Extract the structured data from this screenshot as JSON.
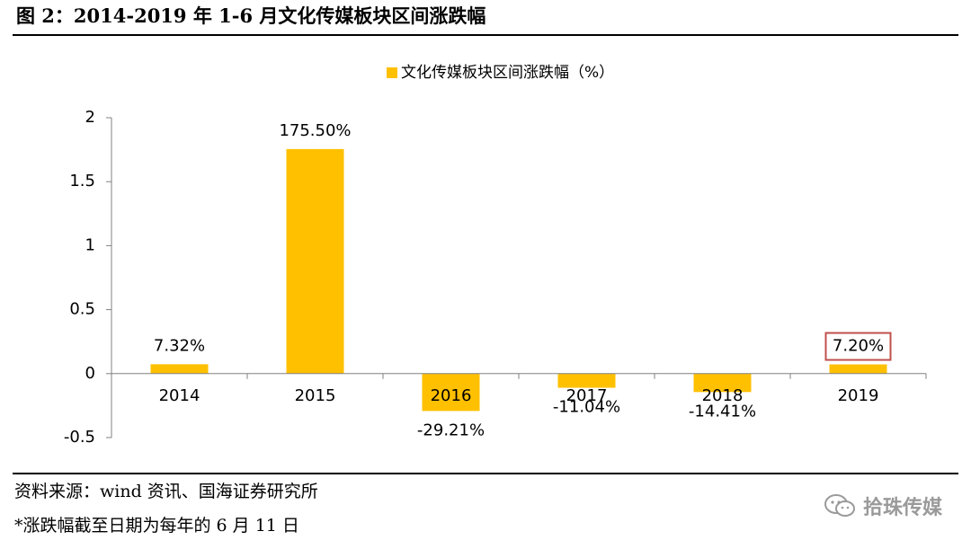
{
  "figure": {
    "title": "图 2：2014-2019 年 1-6 月文化传媒板块区间涨跌幅",
    "source": "资料来源：wind 资讯、国海证券研究所",
    "note": "*涨跌幅截至日期为每年的 6 月 11 日",
    "watermark": "拾珠传媒",
    "watermark_icon": "wechat-icon"
  },
  "chart_data": {
    "type": "bar",
    "categories": [
      "2014",
      "2015",
      "2016",
      "2017",
      "2018",
      "2019"
    ],
    "series": [
      {
        "name": "文化传媒板块区间涨跌幅（%）",
        "values": [
          0.0732,
          1.755,
          -0.2921,
          -0.1104,
          -0.1441,
          0.072
        ],
        "labels": [
          "7.32%",
          "175.50%",
          "-29.21%",
          "-11.04%",
          "-14.41%",
          "7.20%"
        ]
      }
    ],
    "ylim": [
      -0.5,
      2
    ],
    "yticks": [
      -0.5,
      0,
      0.5,
      1,
      1.5,
      2
    ],
    "ytick_labels": [
      "-0.5",
      "0",
      "0.5",
      "1",
      "1.5",
      "2"
    ],
    "highlighted_label": "7.20%",
    "legend_position": "top-center",
    "grid": false,
    "colors": {
      "bar": "#FFC000",
      "highlight_box": "#C0504D",
      "axis": "#808080"
    }
  }
}
